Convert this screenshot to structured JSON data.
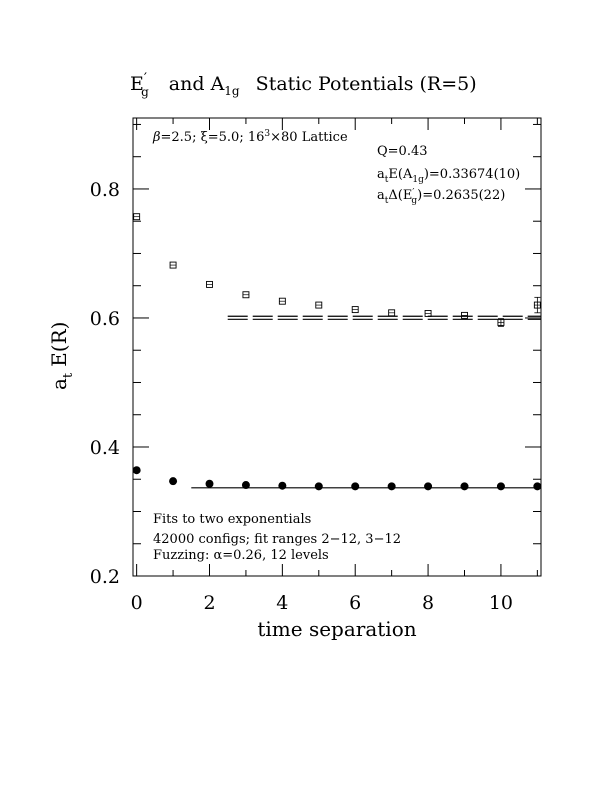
{
  "chart_data": {
    "type": "scatter",
    "title": {
      "E_part": "E",
      "E_prime": "′",
      "E_sub": "g",
      "and_part": "and A",
      "A_sub": "1g",
      "rest": "Static Potentials (R=5)"
    },
    "xlabel": "time separation",
    "ylabel": {
      "a": "a",
      "a_sub": "t",
      "rest": "E(R)"
    },
    "xlim": [
      -0.1,
      11.1
    ],
    "ylim": [
      0.2,
      0.91
    ],
    "xticks": [
      0,
      2,
      4,
      6,
      8,
      10
    ],
    "yticks": [
      0.2,
      0.4,
      0.6,
      0.8
    ],
    "ytick_labels": [
      "0.2",
      "0.4",
      "0.6",
      "0.8"
    ],
    "xtick_labels": [
      "0",
      "2",
      "4",
      "6",
      "8",
      "10"
    ],
    "annotations": {
      "lattice": {
        "beta": "β",
        "rest": "=2.5;  ξ=5.0;  16",
        "sup": "3",
        "tail": "×80 Lattice"
      },
      "q": "Q=0.43",
      "ae_a1g": {
        "pre": "a",
        "sub1": "t",
        "mid": "E(A",
        "sub2": "1g",
        "post": ")=0.33674(10)"
      },
      "ad_eg": {
        "pre": "a",
        "sub1": "t",
        "mid": "Δ(E",
        "prime": "′",
        "sub2": "g",
        "post": ")=0.2635(22)"
      },
      "fits": "Fits to two exponentials",
      "configs": "42000 configs; fit ranges 2−12, 3−12",
      "fuzzing": "Fuzzing: α=0.26, 12 levels"
    },
    "series": [
      {
        "marker": "filled-circle",
        "x": [
          0,
          1,
          2,
          3,
          4,
          5,
          6,
          7,
          8,
          9,
          10,
          11
        ],
        "y": [
          0.364,
          0.347,
          0.343,
          0.341,
          0.34,
          0.339,
          0.339,
          0.339,
          0.339,
          0.339,
          0.339,
          0.339
        ],
        "err": [
          0,
          0,
          0,
          0,
          0,
          0,
          0,
          0,
          0,
          0,
          0,
          0
        ]
      },
      {
        "marker": "open-square",
        "x": [
          0,
          1,
          2,
          3,
          4,
          5,
          6,
          7,
          8,
          9,
          10,
          11
        ],
        "y": [
          0.757,
          0.682,
          0.652,
          0.636,
          0.626,
          0.62,
          0.613,
          0.608,
          0.607,
          0.604,
          0.593,
          0.62
        ],
        "err": [
          0,
          0,
          0,
          0,
          0,
          0,
          0,
          0,
          0,
          0,
          0.006,
          0.012
        ]
      }
    ],
    "fit_lines": [
      {
        "x_start": 1.5,
        "x_end": 11.1,
        "y": [
          0.3367
        ],
        "style": "solid"
      },
      {
        "x_start": 2.5,
        "x_end": 11.1,
        "y": [
          0.5979,
          0.6027
        ],
        "style": "dashed"
      }
    ]
  }
}
